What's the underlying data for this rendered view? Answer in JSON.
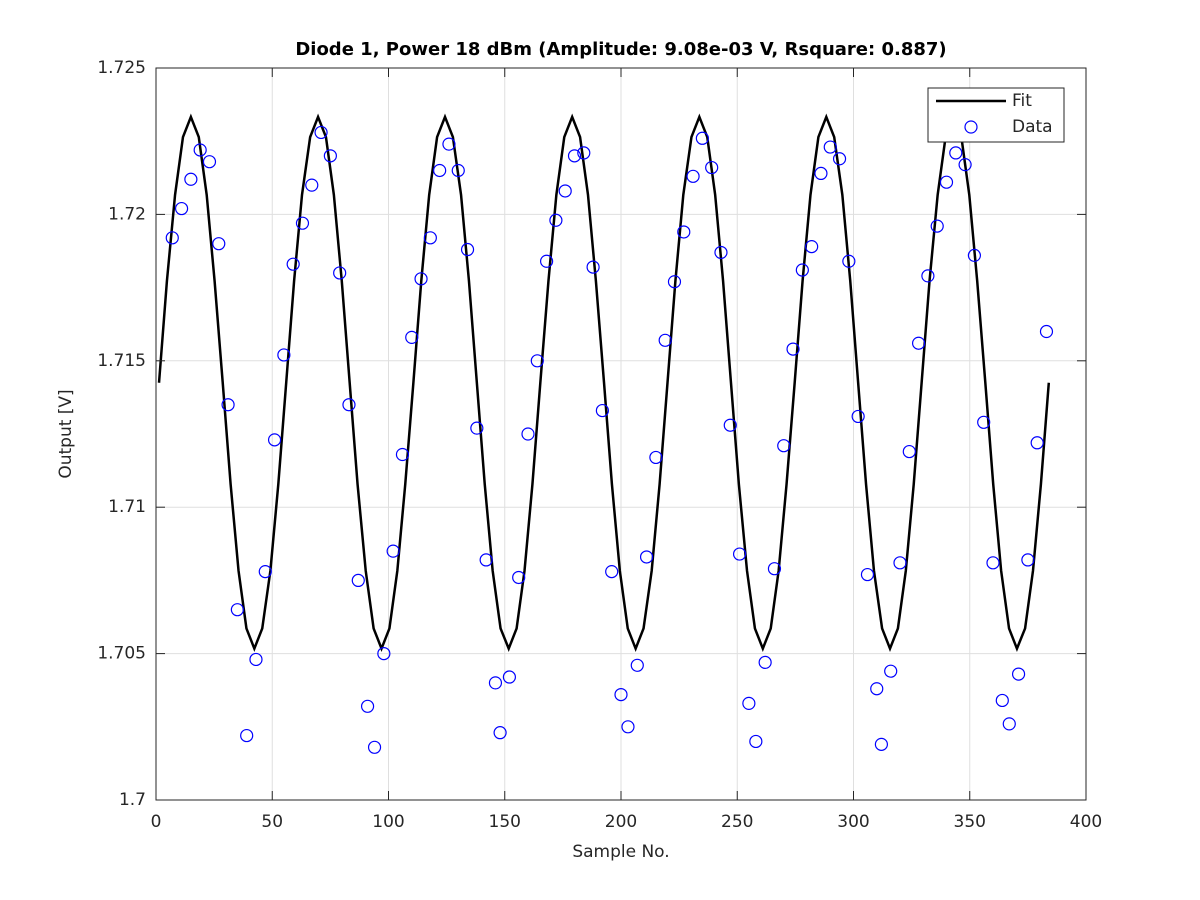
{
  "chart_data": {
    "type": "line",
    "title": "Diode 1, Power 18 dBm (Amplitude: 9.08e-03 V, Rsquare: 0.887)",
    "xlabel": "Sample No.",
    "ylabel": "Output [V]",
    "xlim": [
      0,
      400
    ],
    "xticks": [
      0,
      50,
      100,
      150,
      200,
      250,
      300,
      350,
      400
    ],
    "ylim": [
      1.7,
      1.725
    ],
    "yticks": [
      1.7,
      1.705,
      1.71,
      1.715,
      1.72,
      1.725
    ],
    "grid": true,
    "legend": "northeast",
    "series": [
      {
        "name": "Fit",
        "color": "#000000",
        "mode": "line",
        "x": [
          1.3,
          4.7,
          8.2,
          11.6,
          15.0,
          18.4,
          21.8,
          25.2,
          28.7,
          32.1,
          35.5,
          38.9,
          42.3,
          45.7,
          49.2,
          52.6,
          56.0,
          59.4,
          62.8,
          66.3,
          69.7,
          73.1,
          76.5,
          79.9,
          83.3,
          86.7,
          90.2,
          93.6,
          97.0,
          100.4,
          103.8,
          107.2,
          110.7,
          114.1,
          117.5,
          120.9,
          124.3,
          127.7,
          131.2,
          134.6,
          138.0,
          141.4,
          144.8,
          148.2,
          151.7,
          155.1,
          158.5,
          161.9,
          165.3,
          168.8,
          172.2,
          175.6,
          179.0,
          182.4,
          185.8,
          189.2,
          192.7,
          196.1,
          199.5,
          202.9,
          206.3,
          209.7,
          213.2,
          216.6,
          220.0,
          223.4,
          226.8,
          230.3,
          233.7,
          237.1,
          240.5,
          243.9,
          247.3,
          250.7,
          254.2,
          257.6,
          261.0,
          264.4,
          267.8,
          271.2,
          274.7,
          278.1,
          281.5,
          284.9,
          288.3,
          291.7,
          295.2,
          298.6,
          302.0,
          305.4,
          308.8,
          312.3,
          315.7,
          319.1,
          322.5,
          325.9,
          329.3,
          332.7,
          336.2,
          339.6,
          343.0,
          346.4,
          349.8,
          353.2,
          356.7,
          360.1,
          363.5,
          366.9,
          370.3,
          373.8,
          377.2,
          380.6,
          384.0
        ],
        "values": [
          1.71425,
          1.71773,
          1.72067,
          1.72264,
          1.72333,
          1.72264,
          1.72067,
          1.71773,
          1.71425,
          1.71078,
          1.70783,
          1.70586,
          1.70517,
          1.70586,
          1.70783,
          1.71078,
          1.71425,
          1.71773,
          1.72067,
          1.72264,
          1.72333,
          1.72264,
          1.72067,
          1.71773,
          1.71425,
          1.71078,
          1.70783,
          1.70586,
          1.70517,
          1.70586,
          1.70783,
          1.71078,
          1.71425,
          1.71773,
          1.72067,
          1.72264,
          1.72333,
          1.72264,
          1.72067,
          1.71773,
          1.71425,
          1.71078,
          1.70783,
          1.70586,
          1.70517,
          1.70586,
          1.70783,
          1.71078,
          1.71425,
          1.71773,
          1.72067,
          1.72264,
          1.72333,
          1.72264,
          1.72067,
          1.71773,
          1.71425,
          1.71078,
          1.70783,
          1.70586,
          1.70517,
          1.70586,
          1.70783,
          1.71078,
          1.71425,
          1.71773,
          1.72067,
          1.72264,
          1.72333,
          1.72264,
          1.72067,
          1.71773,
          1.71425,
          1.71078,
          1.70783,
          1.70586,
          1.70517,
          1.70586,
          1.70783,
          1.71078,
          1.71425,
          1.71773,
          1.72067,
          1.72264,
          1.72333,
          1.72264,
          1.72067,
          1.71773,
          1.71425,
          1.71078,
          1.70783,
          1.70586,
          1.70517,
          1.70586,
          1.70783,
          1.71078,
          1.71425,
          1.71773,
          1.72067,
          1.72264,
          1.72333,
          1.72264,
          1.72067,
          1.71773,
          1.71425,
          1.71078,
          1.70783,
          1.70586,
          1.70517,
          1.70586,
          1.70783,
          1.71078,
          1.71425
        ]
      },
      {
        "name": "Data",
        "color": "#0000ff",
        "mode": "markers",
        "x": [
          7,
          11,
          15,
          19,
          23,
          27,
          31,
          35,
          39,
          43,
          47,
          51,
          55,
          59,
          63,
          67,
          71,
          75,
          79,
          83,
          87,
          91,
          94,
          98,
          102,
          106,
          110,
          114,
          118,
          122,
          126,
          130,
          134,
          138,
          142,
          146,
          148,
          152,
          156,
          160,
          164,
          168,
          172,
          176,
          180,
          184,
          188,
          192,
          196,
          200,
          203,
          207,
          211,
          215,
          219,
          223,
          227,
          231,
          235,
          239,
          243,
          247,
          251,
          255,
          258,
          262,
          266,
          270,
          274,
          278,
          282,
          286,
          290,
          294,
          298,
          302,
          306,
          310,
          312,
          316,
          320,
          324,
          328,
          332,
          336,
          340,
          344,
          348,
          352,
          356,
          360,
          364,
          367,
          371,
          375,
          379,
          383
        ],
        "values": [
          1.7192,
          1.7202,
          1.7212,
          1.7222,
          1.7218,
          1.719,
          1.7135,
          1.7065,
          1.7022,
          1.7048,
          1.7078,
          1.7123,
          1.7152,
          1.7183,
          1.7197,
          1.721,
          1.7228,
          1.722,
          1.718,
          1.7135,
          1.7075,
          1.7032,
          1.7018,
          1.705,
          1.7085,
          1.7118,
          1.7158,
          1.7178,
          1.7192,
          1.7215,
          1.7224,
          1.7215,
          1.7188,
          1.7127,
          1.7082,
          1.704,
          1.7023,
          1.7042,
          1.7076,
          1.7125,
          1.715,
          1.7184,
          1.7198,
          1.7208,
          1.722,
          1.7221,
          1.7182,
          1.7133,
          1.7078,
          1.7036,
          1.7025,
          1.7046,
          1.7083,
          1.7117,
          1.7157,
          1.7177,
          1.7194,
          1.7213,
          1.7226,
          1.7216,
          1.7187,
          1.7128,
          1.7084,
          1.7033,
          1.702,
          1.7047,
          1.7079,
          1.7121,
          1.7154,
          1.7181,
          1.7189,
          1.7214,
          1.7223,
          1.7219,
          1.7184,
          1.7131,
          1.7077,
          1.7038,
          1.7019,
          1.7044,
          1.7081,
          1.7119,
          1.7156,
          1.7179,
          1.7196,
          1.7211,
          1.7221,
          1.7217,
          1.7186,
          1.7129,
          1.7081,
          1.7034,
          1.7026,
          1.7043,
          1.7082,
          1.7122,
          1.716
        ]
      }
    ]
  }
}
